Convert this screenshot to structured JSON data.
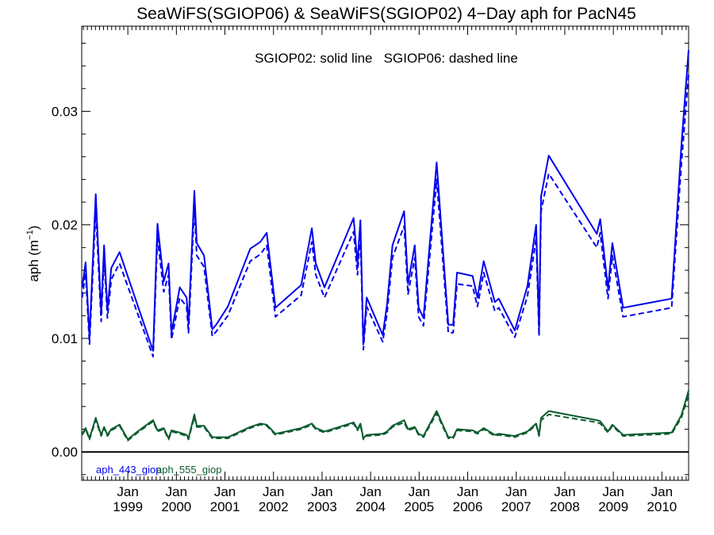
{
  "chart_data": {
    "type": "line",
    "title": "SeaWiFS(SGIOP06) & SeaWiFS(SGIOP02) 4−Day aph for PacN45",
    "annotation": "SGIOP02: solid line   SGIOP06: dashed line",
    "ylabel_text": "aph (m",
    "ylabel_sup": "−1",
    "ylabel_close": ")",
    "ylim": [
      -0.0025,
      0.0375
    ],
    "xlim": [
      1998.05,
      2010.55
    ],
    "y_ticks": [
      0.0,
      0.01,
      0.02,
      0.03
    ],
    "y_tick_labels": [
      "0.00",
      "0.01",
      "0.02",
      "0.03"
    ],
    "x_ticks": [
      1999,
      2000,
      2001,
      2002,
      2003,
      2004,
      2005,
      2006,
      2007,
      2008,
      2009,
      2010
    ],
    "x_tick_month": "Jan",
    "x_tick_labels": [
      "1999",
      "2000",
      "2001",
      "2002",
      "2003",
      "2004",
      "2005",
      "2006",
      "2007",
      "2008",
      "2009",
      "2010"
    ],
    "zero_line": true,
    "grid": false,
    "legend_position": "bottom-left",
    "colors": {
      "blue": "#0000ee",
      "green": "#0a5c2e"
    },
    "series": [
      {
        "name": "aph_443_giop",
        "style": "solid",
        "color": "#0000ee",
        "x": [
          1998.06,
          1998.13,
          1998.21,
          1998.34,
          1998.45,
          1998.51,
          1998.58,
          1998.66,
          1998.83,
          1999.52,
          1999.61,
          1999.74,
          1999.84,
          1999.9,
          2000.07,
          2000.21,
          2000.25,
          2000.37,
          2000.42,
          2000.57,
          2000.74,
          2000.82,
          2001.06,
          2001.52,
          2001.73,
          2001.86,
          2002.04,
          2002.57,
          2002.79,
          2002.87,
          2003.05,
          2003.65,
          2003.73,
          2003.79,
          2003.85,
          2003.92,
          2004.25,
          2004.34,
          2004.45,
          2004.69,
          2004.77,
          2004.91,
          2004.99,
          2005.09,
          2005.36,
          2005.6,
          2005.7,
          2005.78,
          2006.1,
          2006.2,
          2006.33,
          2006.56,
          2006.64,
          2006.97,
          2007.23,
          2007.41,
          2007.47,
          2007.51,
          2007.67,
          2008.66,
          2008.73,
          2008.89,
          2008.98,
          2009.2,
          2010.2,
          2010.4,
          2010.55
        ],
        "y": [
          0.0145,
          0.0167,
          0.0101,
          0.0227,
          0.0122,
          0.0182,
          0.0125,
          0.0162,
          0.0176,
          0.0089,
          0.0201,
          0.015,
          0.0166,
          0.0105,
          0.0145,
          0.0136,
          0.0112,
          0.023,
          0.0184,
          0.0173,
          0.0108,
          0.0112,
          0.0128,
          0.0179,
          0.0185,
          0.0193,
          0.0127,
          0.0147,
          0.0197,
          0.0166,
          0.0145,
          0.0206,
          0.0166,
          0.0204,
          0.0095,
          0.0136,
          0.0103,
          0.013,
          0.0182,
          0.0212,
          0.0148,
          0.0182,
          0.0127,
          0.0118,
          0.0255,
          0.0112,
          0.0112,
          0.0158,
          0.0155,
          0.0136,
          0.0168,
          0.0132,
          0.0135,
          0.0107,
          0.0146,
          0.02,
          0.0108,
          0.0225,
          0.0261,
          0.0192,
          0.0205,
          0.0144,
          0.0184,
          0.0127,
          0.0135,
          0.0269,
          0.0354
        ]
      },
      {
        "name": "",
        "style": "dashed",
        "color": "#0000ee",
        "x": [
          1998.06,
          1998.13,
          1998.21,
          1998.34,
          1998.45,
          1998.51,
          1998.58,
          1998.66,
          1998.83,
          1999.52,
          1999.61,
          1999.74,
          1999.84,
          1999.9,
          2000.07,
          2000.21,
          2000.25,
          2000.37,
          2000.42,
          2000.57,
          2000.74,
          2000.82,
          2001.06,
          2001.52,
          2001.73,
          2001.86,
          2002.04,
          2002.57,
          2002.79,
          2002.87,
          2003.05,
          2003.65,
          2003.73,
          2003.79,
          2003.85,
          2003.92,
          2004.25,
          2004.34,
          2004.45,
          2004.69,
          2004.77,
          2004.91,
          2004.99,
          2005.09,
          2005.36,
          2005.6,
          2005.7,
          2005.78,
          2006.1,
          2006.2,
          2006.33,
          2006.56,
          2006.64,
          2006.97,
          2007.23,
          2007.41,
          2007.47,
          2007.51,
          2007.67,
          2008.66,
          2008.73,
          2008.89,
          2008.98,
          2009.2,
          2010.2,
          2010.4,
          2010.55
        ],
        "y": [
          0.0136,
          0.0158,
          0.0095,
          0.0213,
          0.0115,
          0.0171,
          0.0118,
          0.0152,
          0.0166,
          0.0084,
          0.0189,
          0.0141,
          0.0156,
          0.0099,
          0.0136,
          0.0128,
          0.0105,
          0.0216,
          0.0173,
          0.0163,
          0.0102,
          0.0106,
          0.012,
          0.0168,
          0.0174,
          0.0182,
          0.0119,
          0.0138,
          0.0185,
          0.0156,
          0.0136,
          0.0194,
          0.0156,
          0.0192,
          0.009,
          0.0128,
          0.0097,
          0.0122,
          0.0171,
          0.0199,
          0.0139,
          0.0171,
          0.0119,
          0.0111,
          0.024,
          0.0105,
          0.0105,
          0.0148,
          0.0146,
          0.0128,
          0.0158,
          0.0124,
          0.0127,
          0.0101,
          0.0137,
          0.0188,
          0.0102,
          0.0212,
          0.0245,
          0.018,
          0.0193,
          0.0135,
          0.0173,
          0.0119,
          0.0127,
          0.0253,
          0.0333
        ]
      },
      {
        "name": "aph_555_giop",
        "style": "solid",
        "color": "#0a5c2e",
        "x": [
          1998.06,
          1998.13,
          1998.21,
          1998.34,
          1998.45,
          1998.51,
          1998.58,
          1998.66,
          1998.83,
          1999.0,
          1999.2,
          1999.52,
          1999.61,
          1999.74,
          1999.84,
          1999.9,
          2000.07,
          2000.21,
          2000.25,
          2000.37,
          2000.42,
          2000.57,
          2000.74,
          2000.82,
          2001.06,
          2001.52,
          2001.73,
          2001.86,
          2002.04,
          2002.57,
          2002.79,
          2002.87,
          2003.05,
          2003.65,
          2003.73,
          2003.79,
          2003.85,
          2003.92,
          2004.25,
          2004.34,
          2004.45,
          2004.69,
          2004.77,
          2004.91,
          2004.99,
          2005.09,
          2005.36,
          2005.6,
          2005.7,
          2005.78,
          2006.1,
          2006.2,
          2006.33,
          2006.56,
          2006.64,
          2006.97,
          2007.23,
          2007.41,
          2007.47,
          2007.51,
          2007.67,
          2008.66,
          2008.73,
          2008.89,
          2008.98,
          2009.2,
          2010.2,
          2010.4,
          2010.55
        ],
        "y": [
          0.0016,
          0.0021,
          0.0012,
          0.003,
          0.0015,
          0.0022,
          0.0015,
          0.002,
          0.0024,
          0.0011,
          0.0018,
          0.0028,
          0.0019,
          0.0021,
          0.0012,
          0.0019,
          0.0017,
          0.0015,
          0.0012,
          0.0033,
          0.0023,
          0.0023,
          0.0013,
          0.0013,
          0.0013,
          0.0022,
          0.0025,
          0.0024,
          0.0016,
          0.0021,
          0.0025,
          0.0021,
          0.0018,
          0.0026,
          0.002,
          0.0025,
          0.0012,
          0.0015,
          0.0016,
          0.0018,
          0.0023,
          0.0028,
          0.002,
          0.0022,
          0.0016,
          0.0014,
          0.0036,
          0.0013,
          0.0013,
          0.002,
          0.0019,
          0.0017,
          0.0021,
          0.0015,
          0.0016,
          0.0014,
          0.0018,
          0.0025,
          0.0015,
          0.003,
          0.0036,
          0.0028,
          0.0027,
          0.0018,
          0.0024,
          0.0015,
          0.0017,
          0.0032,
          0.0054
        ]
      },
      {
        "name": "",
        "style": "dashed",
        "color": "#0a5c2e",
        "x": [
          1998.06,
          1998.13,
          1998.21,
          1998.34,
          1998.45,
          1998.51,
          1998.58,
          1998.66,
          1998.83,
          1999.0,
          1999.2,
          1999.52,
          1999.61,
          1999.74,
          1999.84,
          1999.9,
          2000.07,
          2000.21,
          2000.25,
          2000.37,
          2000.42,
          2000.57,
          2000.74,
          2000.82,
          2001.06,
          2001.52,
          2001.73,
          2001.86,
          2002.04,
          2002.57,
          2002.79,
          2002.87,
          2003.05,
          2003.65,
          2003.73,
          2003.79,
          2003.85,
          2003.92,
          2004.25,
          2004.34,
          2004.45,
          2004.69,
          2004.77,
          2004.91,
          2004.99,
          2005.09,
          2005.36,
          2005.6,
          2005.7,
          2005.78,
          2006.1,
          2006.2,
          2006.33,
          2006.56,
          2006.64,
          2006.97,
          2007.23,
          2007.41,
          2007.47,
          2007.51,
          2007.67,
          2008.66,
          2008.73,
          2008.89,
          2008.98,
          2009.2,
          2010.2,
          2010.4,
          2010.55
        ],
        "y": [
          0.0015,
          0.002,
          0.0011,
          0.0028,
          0.0014,
          0.0021,
          0.0014,
          0.0019,
          0.0023,
          0.001,
          0.0017,
          0.0027,
          0.0018,
          0.002,
          0.0011,
          0.0018,
          0.0016,
          0.0014,
          0.0011,
          0.0031,
          0.0022,
          0.0022,
          0.0012,
          0.0012,
          0.0012,
          0.0021,
          0.0024,
          0.0023,
          0.0015,
          0.002,
          0.0024,
          0.002,
          0.0017,
          0.0025,
          0.0019,
          0.0024,
          0.0011,
          0.0014,
          0.0015,
          0.0017,
          0.0022,
          0.0026,
          0.0019,
          0.0021,
          0.0015,
          0.0013,
          0.0034,
          0.0012,
          0.0012,
          0.0019,
          0.0018,
          0.0016,
          0.002,
          0.0014,
          0.0015,
          0.0013,
          0.0017,
          0.0024,
          0.0014,
          0.0028,
          0.0033,
          0.0026,
          0.0025,
          0.0017,
          0.0023,
          0.0014,
          0.0016,
          0.003,
          0.005
        ]
      }
    ]
  }
}
